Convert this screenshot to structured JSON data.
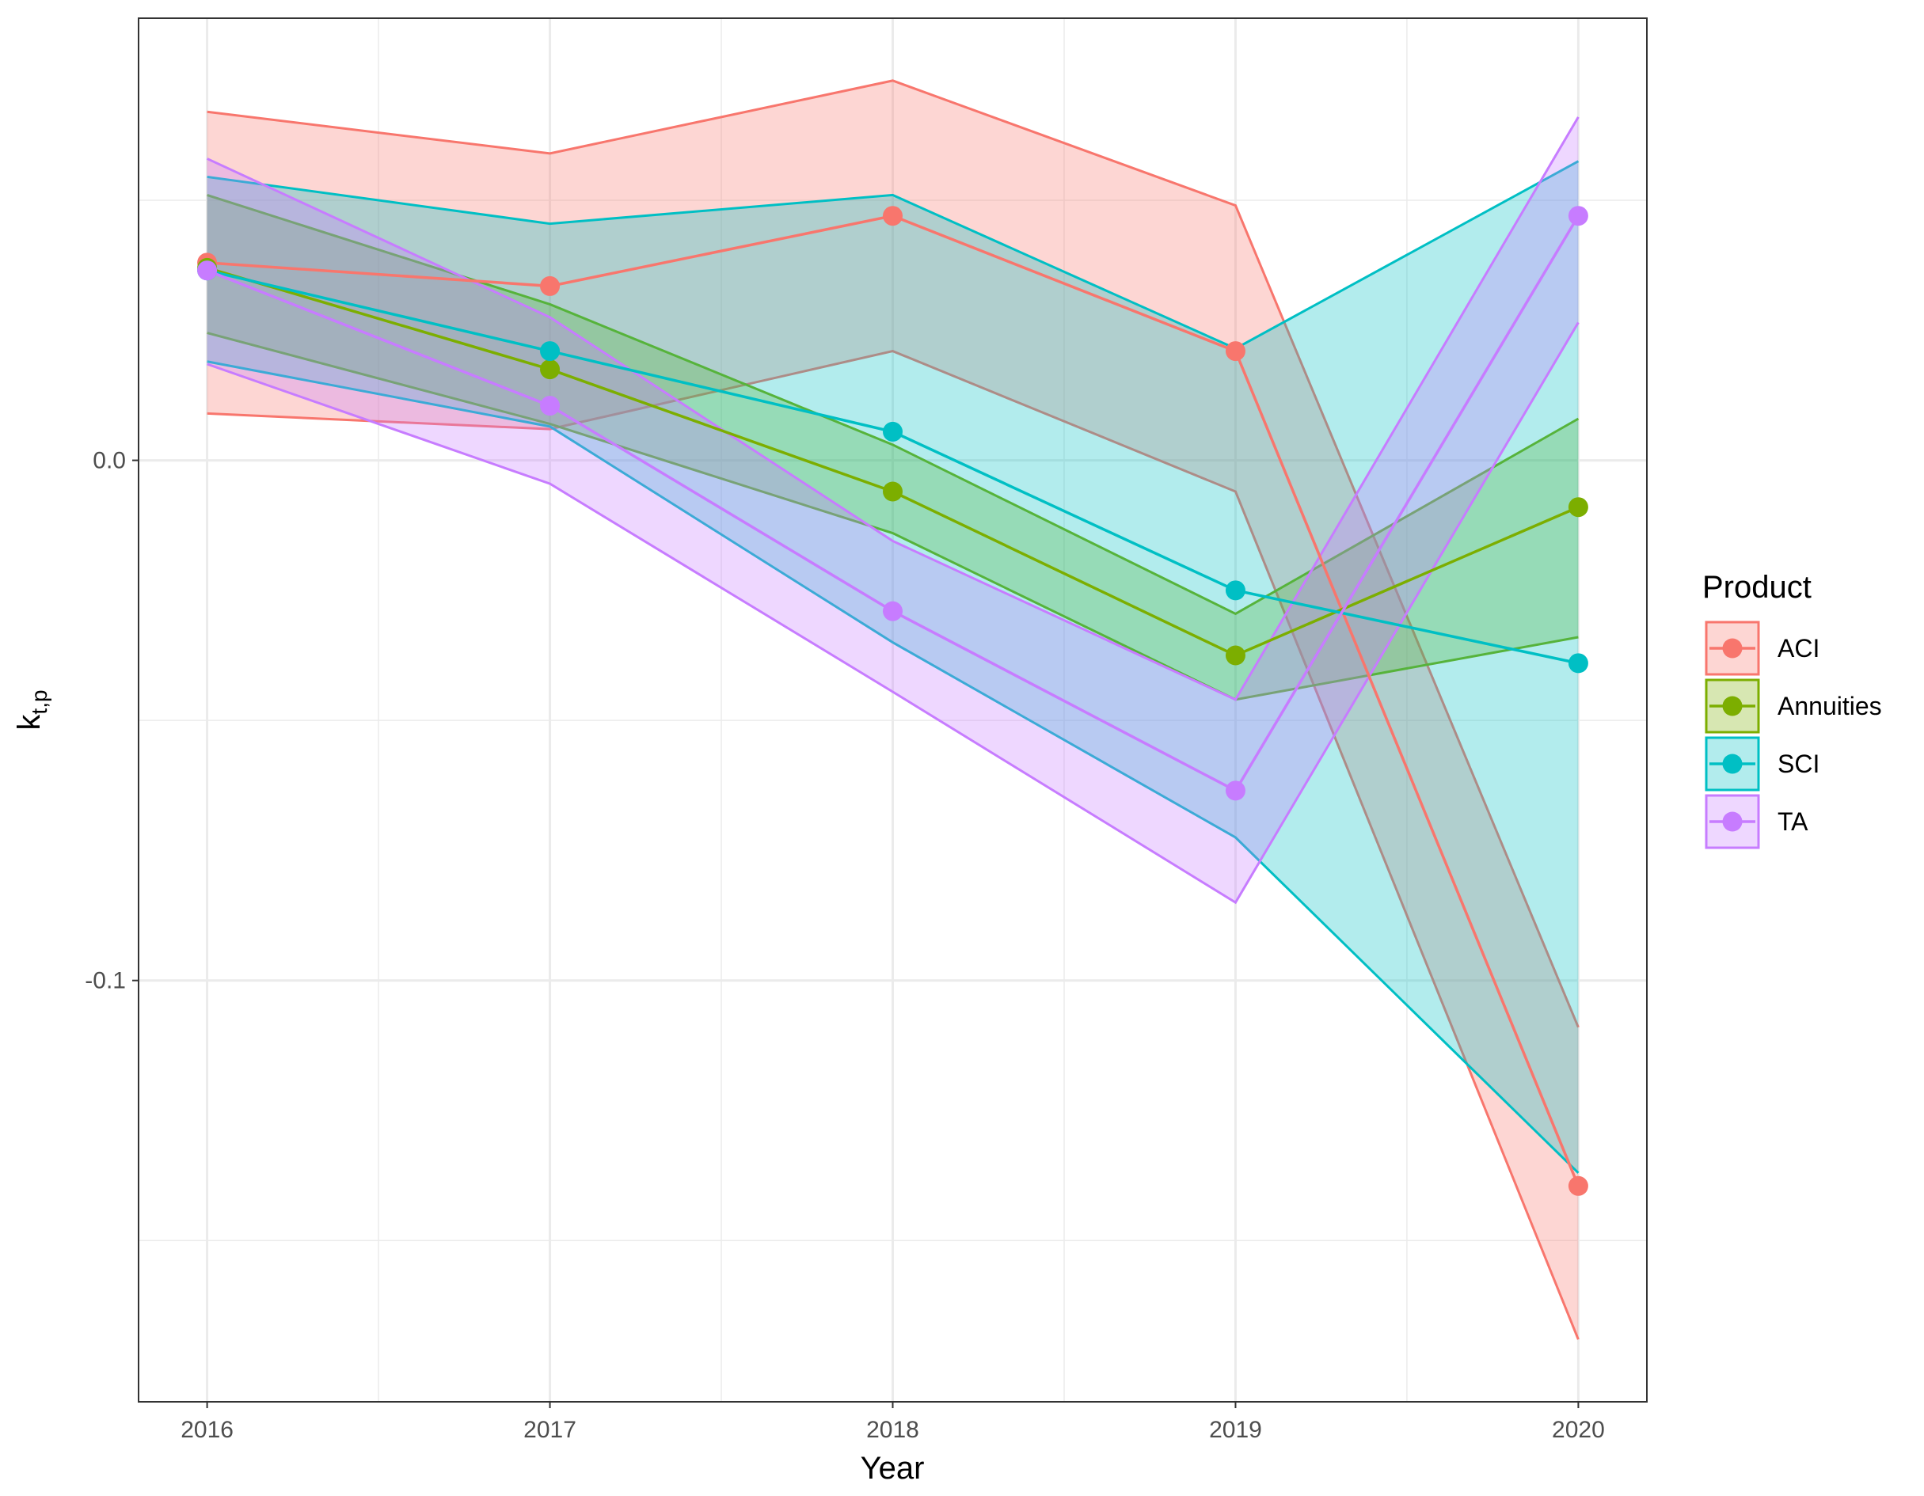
{
  "chart_data": {
    "type": "line",
    "title": "",
    "xlabel": "Year",
    "ylabel": "k",
    "ylabel_subscript": "t,p",
    "x": [
      2016,
      2017,
      2018,
      2019,
      2020
    ],
    "x_tick_labels": [
      "2016",
      "2017",
      "2018",
      "2019",
      "2020"
    ],
    "y_ticks": [
      0.0,
      -0.1
    ],
    "y_tick_labels": [
      "0.0",
      "-0.1"
    ],
    "xlim": [
      2015.8,
      2020.2
    ],
    "ylim": [
      -0.181,
      0.085
    ],
    "grid": true,
    "legend_title": "Product",
    "legend_position": "right",
    "series": [
      {
        "name": "ACI",
        "color": "#F8766D",
        "values": [
          0.038,
          0.0335,
          0.047,
          0.021,
          -0.1395
        ],
        "lower": [
          0.009,
          0.006,
          0.021,
          -0.006,
          -0.169
        ],
        "upper": [
          0.067,
          0.059,
          0.073,
          0.049,
          -0.109
        ]
      },
      {
        "name": "Annuities",
        "color": "#7CAE00",
        "values": [
          0.037,
          0.0175,
          -0.006,
          -0.0375,
          -0.009
        ],
        "lower": [
          0.0245,
          0.007,
          -0.014,
          -0.046,
          -0.034
        ],
        "upper": [
          0.051,
          0.03,
          0.003,
          -0.0295,
          0.008
        ]
      },
      {
        "name": "SCI",
        "color": "#00BFC4",
        "values": [
          0.0365,
          0.021,
          0.0055,
          -0.025,
          -0.039
        ],
        "lower": [
          0.019,
          0.0065,
          -0.035,
          -0.0725,
          -0.137
        ],
        "upper": [
          0.0545,
          0.0455,
          0.051,
          0.0215,
          0.0575
        ]
      },
      {
        "name": "TA",
        "color": "#C77CFF",
        "values": [
          0.0365,
          0.0105,
          -0.029,
          -0.0635,
          0.047
        ],
        "lower": [
          0.0185,
          -0.0045,
          -0.0445,
          -0.085,
          0.0265
        ],
        "upper": [
          0.058,
          0.0275,
          -0.0155,
          -0.046,
          0.066
        ]
      }
    ]
  }
}
